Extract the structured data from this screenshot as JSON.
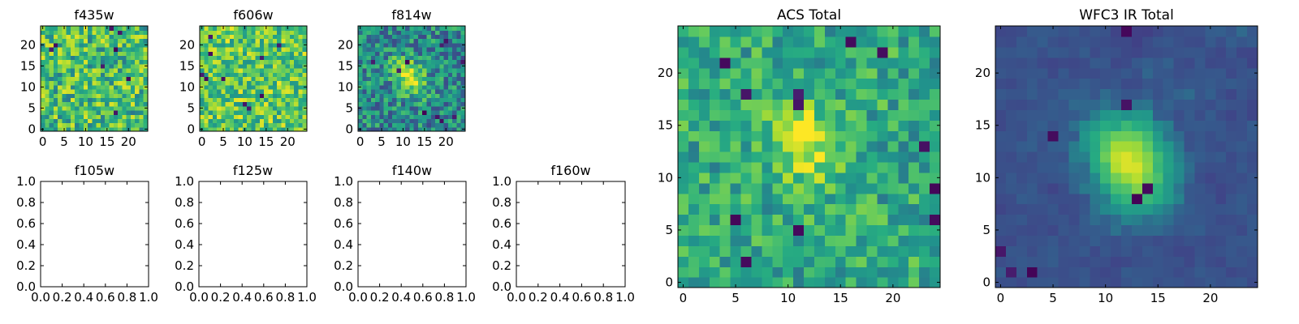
{
  "figure": {
    "background": "#ffffff",
    "colormap": "viridis"
  },
  "chart_data": [
    {
      "id": "f435w",
      "type": "heatmap",
      "title": "f435w",
      "grid_size": 25,
      "xlim": [
        -0.5,
        24.5
      ],
      "ylim": [
        -0.5,
        24.5
      ],
      "xticks": [
        0,
        5,
        10,
        15,
        20
      ],
      "yticks": [
        0,
        5,
        10,
        15,
        20
      ],
      "pattern": {
        "seed": 11,
        "base": 0.7,
        "noise": 0.26,
        "dark_pixels": 8,
        "blob": null
      }
    },
    {
      "id": "f606w",
      "type": "heatmap",
      "title": "f606w",
      "grid_size": 25,
      "xlim": [
        -0.5,
        24.5
      ],
      "ylim": [
        -0.5,
        24.5
      ],
      "xticks": [
        0,
        5,
        10,
        15,
        20
      ],
      "yticks": [
        0,
        5,
        10,
        15,
        20
      ],
      "pattern": {
        "seed": 23,
        "base": 0.74,
        "noise": 0.24,
        "dark_pixels": 10,
        "blob": null
      }
    },
    {
      "id": "f814w",
      "type": "heatmap",
      "title": "f814w",
      "grid_size": 25,
      "xlim": [
        -0.5,
        24.5
      ],
      "ylim": [
        -0.5,
        24.5
      ],
      "xticks": [
        0,
        5,
        10,
        15,
        20
      ],
      "yticks": [
        0,
        5,
        10,
        15,
        20
      ],
      "pattern": {
        "seed": 37,
        "base": 0.5,
        "noise": 0.22,
        "dark_pixels": 10,
        "blob": {
          "cx": 11.5,
          "cy": 12.5,
          "sx": 2.2,
          "sy": 3.5,
          "amp": 0.45,
          "rot": -0.6
        }
      }
    },
    {
      "id": "f105w",
      "type": "heatmap",
      "title": "f105w",
      "empty": true,
      "xlim": [
        0.0,
        1.0
      ],
      "ylim": [
        0.0,
        1.0
      ],
      "xtick_labels": [
        "0.0",
        "0.2",
        "0.4",
        "0.6",
        "0.8",
        "1.0"
      ],
      "ytick_labels": [
        "0.0",
        "0.2",
        "0.4",
        "0.6",
        "0.8",
        "1.0"
      ]
    },
    {
      "id": "f125w",
      "type": "heatmap",
      "title": "f125w",
      "empty": true,
      "xlim": [
        0.0,
        1.0
      ],
      "ylim": [
        0.0,
        1.0
      ],
      "xtick_labels": [
        "0.0",
        "0.2",
        "0.4",
        "0.6",
        "0.8",
        "1.0"
      ],
      "ytick_labels": [
        "0.0",
        "0.2",
        "0.4",
        "0.6",
        "0.8",
        "1.0"
      ]
    },
    {
      "id": "f140w",
      "type": "heatmap",
      "title": "f140w",
      "empty": true,
      "xlim": [
        0.0,
        1.0
      ],
      "ylim": [
        0.0,
        1.0
      ],
      "xtick_labels": [
        "0.0",
        "0.2",
        "0.4",
        "0.6",
        "0.8",
        "1.0"
      ],
      "ytick_labels": [
        "0.0",
        "0.2",
        "0.4",
        "0.6",
        "0.8",
        "1.0"
      ]
    },
    {
      "id": "f160w",
      "type": "heatmap",
      "title": "f160w",
      "empty": true,
      "xlim": [
        0.0,
        1.0
      ],
      "ylim": [
        0.0,
        1.0
      ],
      "xtick_labels": [
        "0.0",
        "0.2",
        "0.4",
        "0.6",
        "0.8",
        "1.0"
      ],
      "ytick_labels": [
        "0.0",
        "0.2",
        "0.4",
        "0.6",
        "0.8",
        "1.0"
      ]
    },
    {
      "id": "acs-total",
      "type": "heatmap",
      "title": "ACS Total",
      "grid_size": 25,
      "xlim": [
        -0.5,
        24.5
      ],
      "ylim": [
        -0.5,
        24.5
      ],
      "xticks": [
        0,
        5,
        10,
        15,
        20
      ],
      "yticks": [
        0,
        5,
        10,
        15,
        20
      ],
      "pattern": {
        "seed": 53,
        "base": 0.62,
        "noise": 0.18,
        "dark_pixels": 12,
        "blob": {
          "cx": 11.5,
          "cy": 13.5,
          "sx": 2.0,
          "sy": 3.0,
          "amp": 0.33,
          "rot": -0.3
        }
      }
    },
    {
      "id": "wfc3-ir-total",
      "type": "heatmap",
      "title": "WFC3 IR Total",
      "grid_size": 25,
      "xlim": [
        -0.5,
        24.5
      ],
      "ylim": [
        -0.5,
        24.5
      ],
      "xticks": [
        0,
        5,
        10,
        15,
        20
      ],
      "yticks": [
        0,
        5,
        10,
        15,
        20
      ],
      "pattern": {
        "seed": 71,
        "base": 0.32,
        "noise": 0.1,
        "dark_pixels": 8,
        "smooth": true,
        "blob": {
          "cx": 12.5,
          "cy": 11.5,
          "sx": 2.6,
          "sy": 3.2,
          "amp": 0.62,
          "rot": -0.5
        }
      }
    }
  ]
}
